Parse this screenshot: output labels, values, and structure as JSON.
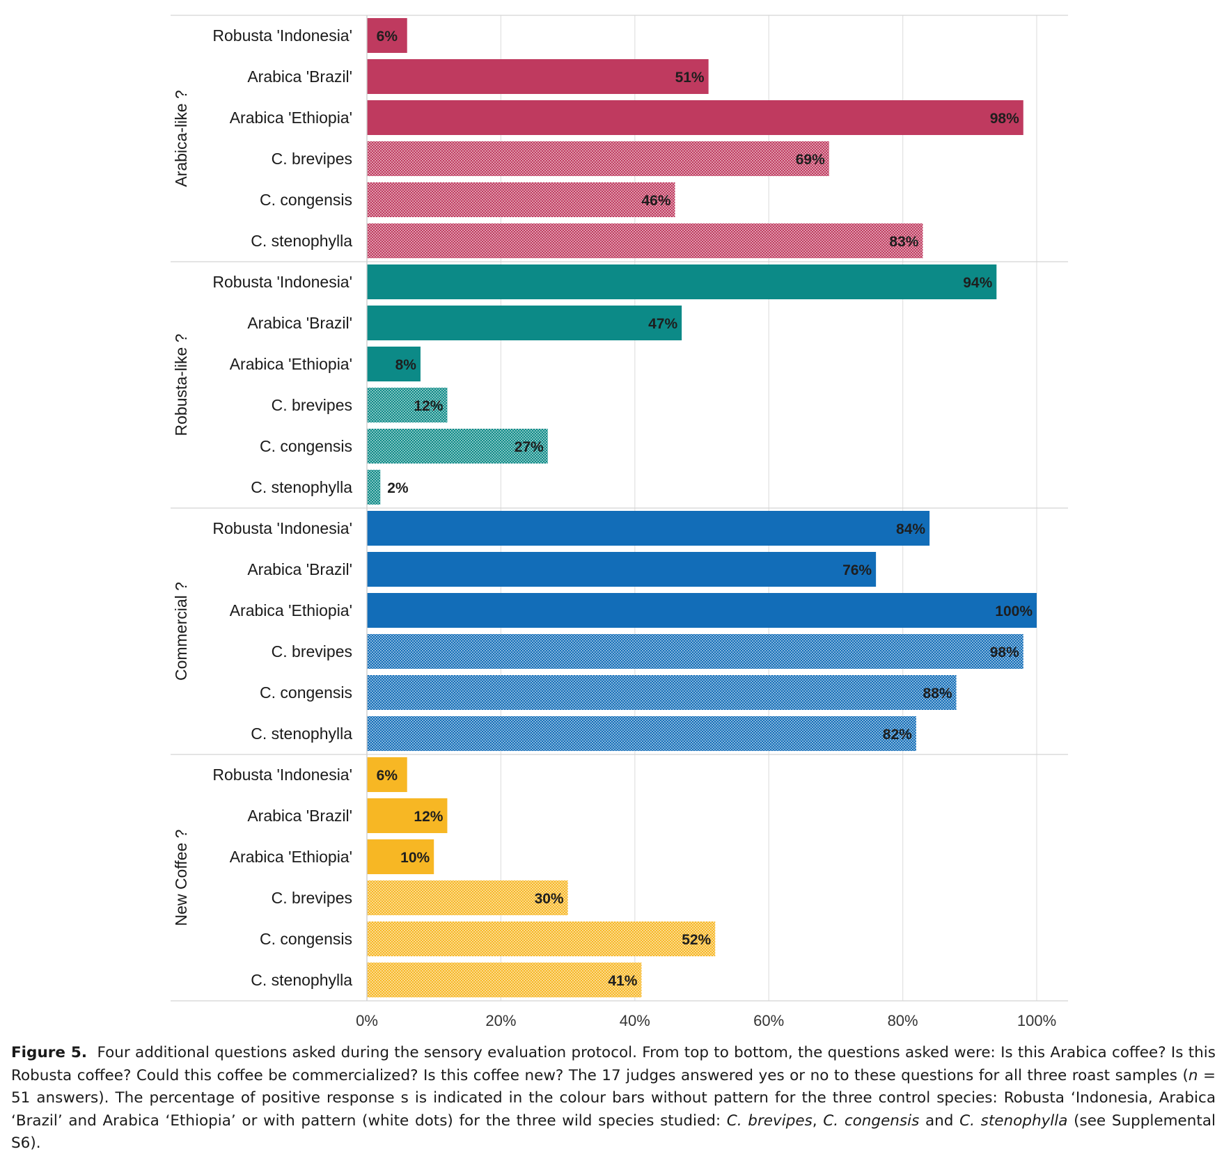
{
  "chart_data": {
    "type": "bar",
    "orientation": "horizontal",
    "x_ticks": [
      "0%",
      "20%",
      "40%",
      "60%",
      "80%",
      "100%"
    ],
    "xlim": [
      0,
      100
    ],
    "grid": true,
    "value_suffix": "%",
    "panels": [
      {
        "label": "Arabica-like ?",
        "color": "#bf3a5f",
        "bars": [
          {
            "category": "Robusta 'Indonesia'",
            "value": 6,
            "pattern": false
          },
          {
            "category": "Arabica 'Brazil'",
            "value": 51,
            "pattern": false
          },
          {
            "category": "Arabica 'Ethiopia'",
            "value": 98,
            "pattern": false
          },
          {
            "category": "C. brevipes",
            "value": 69,
            "pattern": true
          },
          {
            "category": "C. congensis",
            "value": 46,
            "pattern": true
          },
          {
            "category": "C. stenophylla",
            "value": 83,
            "pattern": true
          }
        ]
      },
      {
        "label": "Robusta-like ?",
        "color": "#0c8a87",
        "bars": [
          {
            "category": "Robusta 'Indonesia'",
            "value": 94,
            "pattern": false
          },
          {
            "category": "Arabica 'Brazil'",
            "value": 47,
            "pattern": false
          },
          {
            "category": "Arabica 'Ethiopia'",
            "value": 8,
            "pattern": false
          },
          {
            "category": "C. brevipes",
            "value": 12,
            "pattern": true
          },
          {
            "category": "C. congensis",
            "value": 27,
            "pattern": true
          },
          {
            "category": "C. stenophylla",
            "value": 2,
            "pattern": true
          }
        ]
      },
      {
        "label": "Commercial ?",
        "color": "#126db8",
        "bars": [
          {
            "category": "Robusta 'Indonesia'",
            "value": 84,
            "pattern": false
          },
          {
            "category": "Arabica 'Brazil'",
            "value": 76,
            "pattern": false
          },
          {
            "category": "Arabica 'Ethiopia'",
            "value": 100,
            "pattern": false
          },
          {
            "category": "C. brevipes",
            "value": 98,
            "pattern": true
          },
          {
            "category": "C. congensis",
            "value": 88,
            "pattern": true
          },
          {
            "category": "C. stenophylla",
            "value": 82,
            "pattern": true
          }
        ]
      },
      {
        "label": "New Coffee ?",
        "color": "#f7b724",
        "bars": [
          {
            "category": "Robusta 'Indonesia'",
            "value": 6,
            "pattern": false
          },
          {
            "category": "Arabica 'Brazil'",
            "value": 12,
            "pattern": false
          },
          {
            "category": "Arabica 'Ethiopia'",
            "value": 10,
            "pattern": false
          },
          {
            "category": "C. brevipes",
            "value": 30,
            "pattern": true
          },
          {
            "category": "C. congensis",
            "value": 52,
            "pattern": true
          },
          {
            "category": "C. stenophylla",
            "value": 41,
            "pattern": true
          }
        ]
      }
    ]
  },
  "caption": {
    "title": "Figure 5.",
    "text_1": "Four additional questions asked during the sensory evaluation protocol. From top to bottom, the questions asked were: Is this Arabica coffee? Is this Robusta coffee? Could this coffee be commercialized? Is this coffee new? The 17 judges answered yes or no to these questions for all three roast samples (",
    "n_symbol": "n",
    "text_2": " = 51 answers). The percentage of positive response s is indicated in the colour bars without pattern for the three control species: Robusta ‘Indonesia, Arabica ‘Brazil’ and Arabica ‘Ethiopia’ or with pattern (white dots) for the three wild species studied: ",
    "species_1": "C. brevipes",
    "sep_1": ", ",
    "species_2": "C. congensis",
    "sep_2": " and ",
    "species_3": "C. stenophylla",
    "text_3": " (see Supplemental S6)."
  }
}
